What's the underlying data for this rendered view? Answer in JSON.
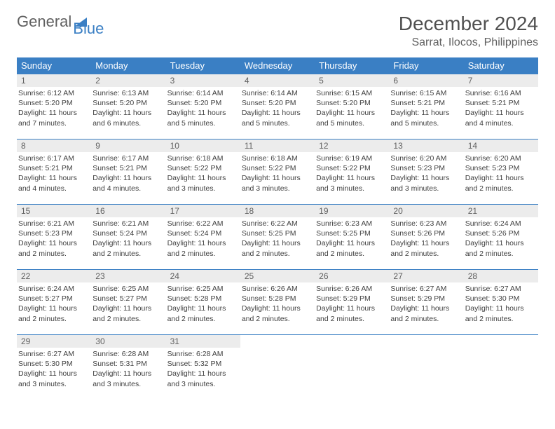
{
  "logo": {
    "text_gray": "General",
    "text_blue": "Blue",
    "icon_color": "#3a7fc4"
  },
  "title": "December 2024",
  "location": "Sarrat, Ilocos, Philippines",
  "colors": {
    "header_bg": "#3a7fc4",
    "day_number_bg": "#ececec",
    "text": "#404040",
    "border": "#3a7fc4"
  },
  "weekdays": [
    "Sunday",
    "Monday",
    "Tuesday",
    "Wednesday",
    "Thursday",
    "Friday",
    "Saturday"
  ],
  "weeks": [
    [
      {
        "day": "1",
        "sunrise": "Sunrise: 6:12 AM",
        "sunset": "Sunset: 5:20 PM",
        "daylight": "Daylight: 11 hours and 7 minutes."
      },
      {
        "day": "2",
        "sunrise": "Sunrise: 6:13 AM",
        "sunset": "Sunset: 5:20 PM",
        "daylight": "Daylight: 11 hours and 6 minutes."
      },
      {
        "day": "3",
        "sunrise": "Sunrise: 6:14 AM",
        "sunset": "Sunset: 5:20 PM",
        "daylight": "Daylight: 11 hours and 5 minutes."
      },
      {
        "day": "4",
        "sunrise": "Sunrise: 6:14 AM",
        "sunset": "Sunset: 5:20 PM",
        "daylight": "Daylight: 11 hours and 5 minutes."
      },
      {
        "day": "5",
        "sunrise": "Sunrise: 6:15 AM",
        "sunset": "Sunset: 5:20 PM",
        "daylight": "Daylight: 11 hours and 5 minutes."
      },
      {
        "day": "6",
        "sunrise": "Sunrise: 6:15 AM",
        "sunset": "Sunset: 5:21 PM",
        "daylight": "Daylight: 11 hours and 5 minutes."
      },
      {
        "day": "7",
        "sunrise": "Sunrise: 6:16 AM",
        "sunset": "Sunset: 5:21 PM",
        "daylight": "Daylight: 11 hours and 4 minutes."
      }
    ],
    [
      {
        "day": "8",
        "sunrise": "Sunrise: 6:17 AM",
        "sunset": "Sunset: 5:21 PM",
        "daylight": "Daylight: 11 hours and 4 minutes."
      },
      {
        "day": "9",
        "sunrise": "Sunrise: 6:17 AM",
        "sunset": "Sunset: 5:21 PM",
        "daylight": "Daylight: 11 hours and 4 minutes."
      },
      {
        "day": "10",
        "sunrise": "Sunrise: 6:18 AM",
        "sunset": "Sunset: 5:22 PM",
        "daylight": "Daylight: 11 hours and 3 minutes."
      },
      {
        "day": "11",
        "sunrise": "Sunrise: 6:18 AM",
        "sunset": "Sunset: 5:22 PM",
        "daylight": "Daylight: 11 hours and 3 minutes."
      },
      {
        "day": "12",
        "sunrise": "Sunrise: 6:19 AM",
        "sunset": "Sunset: 5:22 PM",
        "daylight": "Daylight: 11 hours and 3 minutes."
      },
      {
        "day": "13",
        "sunrise": "Sunrise: 6:20 AM",
        "sunset": "Sunset: 5:23 PM",
        "daylight": "Daylight: 11 hours and 3 minutes."
      },
      {
        "day": "14",
        "sunrise": "Sunrise: 6:20 AM",
        "sunset": "Sunset: 5:23 PM",
        "daylight": "Daylight: 11 hours and 2 minutes."
      }
    ],
    [
      {
        "day": "15",
        "sunrise": "Sunrise: 6:21 AM",
        "sunset": "Sunset: 5:23 PM",
        "daylight": "Daylight: 11 hours and 2 minutes."
      },
      {
        "day": "16",
        "sunrise": "Sunrise: 6:21 AM",
        "sunset": "Sunset: 5:24 PM",
        "daylight": "Daylight: 11 hours and 2 minutes."
      },
      {
        "day": "17",
        "sunrise": "Sunrise: 6:22 AM",
        "sunset": "Sunset: 5:24 PM",
        "daylight": "Daylight: 11 hours and 2 minutes."
      },
      {
        "day": "18",
        "sunrise": "Sunrise: 6:22 AM",
        "sunset": "Sunset: 5:25 PM",
        "daylight": "Daylight: 11 hours and 2 minutes."
      },
      {
        "day": "19",
        "sunrise": "Sunrise: 6:23 AM",
        "sunset": "Sunset: 5:25 PM",
        "daylight": "Daylight: 11 hours and 2 minutes."
      },
      {
        "day": "20",
        "sunrise": "Sunrise: 6:23 AM",
        "sunset": "Sunset: 5:26 PM",
        "daylight": "Daylight: 11 hours and 2 minutes."
      },
      {
        "day": "21",
        "sunrise": "Sunrise: 6:24 AM",
        "sunset": "Sunset: 5:26 PM",
        "daylight": "Daylight: 11 hours and 2 minutes."
      }
    ],
    [
      {
        "day": "22",
        "sunrise": "Sunrise: 6:24 AM",
        "sunset": "Sunset: 5:27 PM",
        "daylight": "Daylight: 11 hours and 2 minutes."
      },
      {
        "day": "23",
        "sunrise": "Sunrise: 6:25 AM",
        "sunset": "Sunset: 5:27 PM",
        "daylight": "Daylight: 11 hours and 2 minutes."
      },
      {
        "day": "24",
        "sunrise": "Sunrise: 6:25 AM",
        "sunset": "Sunset: 5:28 PM",
        "daylight": "Daylight: 11 hours and 2 minutes."
      },
      {
        "day": "25",
        "sunrise": "Sunrise: 6:26 AM",
        "sunset": "Sunset: 5:28 PM",
        "daylight": "Daylight: 11 hours and 2 minutes."
      },
      {
        "day": "26",
        "sunrise": "Sunrise: 6:26 AM",
        "sunset": "Sunset: 5:29 PM",
        "daylight": "Daylight: 11 hours and 2 minutes."
      },
      {
        "day": "27",
        "sunrise": "Sunrise: 6:27 AM",
        "sunset": "Sunset: 5:29 PM",
        "daylight": "Daylight: 11 hours and 2 minutes."
      },
      {
        "day": "28",
        "sunrise": "Sunrise: 6:27 AM",
        "sunset": "Sunset: 5:30 PM",
        "daylight": "Daylight: 11 hours and 2 minutes."
      }
    ],
    [
      {
        "day": "29",
        "sunrise": "Sunrise: 6:27 AM",
        "sunset": "Sunset: 5:30 PM",
        "daylight": "Daylight: 11 hours and 3 minutes."
      },
      {
        "day": "30",
        "sunrise": "Sunrise: 6:28 AM",
        "sunset": "Sunset: 5:31 PM",
        "daylight": "Daylight: 11 hours and 3 minutes."
      },
      {
        "day": "31",
        "sunrise": "Sunrise: 6:28 AM",
        "sunset": "Sunset: 5:32 PM",
        "daylight": "Daylight: 11 hours and 3 minutes."
      },
      null,
      null,
      null,
      null
    ]
  ]
}
